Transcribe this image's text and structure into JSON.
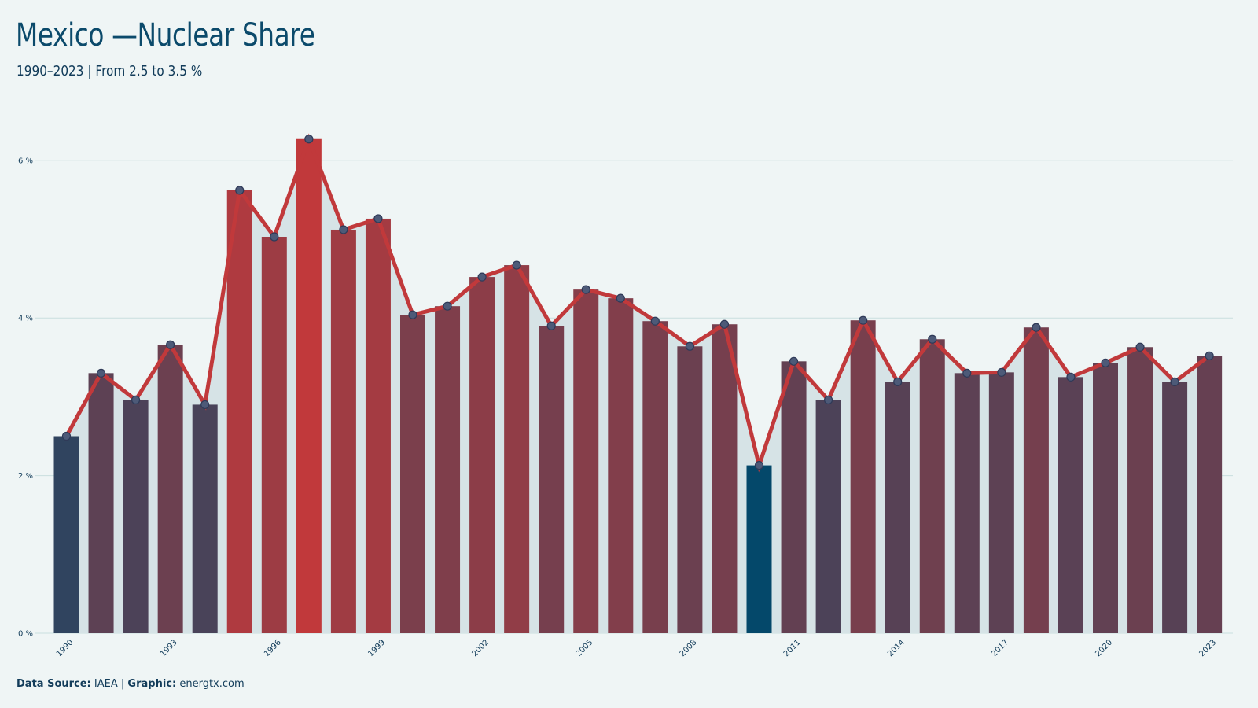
{
  "title": "Mexico —Nuclear Share",
  "subtitle": "1990–2023 | From 2.5 to 3.5 %",
  "footer": {
    "source_label": "Data Source:",
    "source_value": "IAEA",
    "separator": "|",
    "graphic_label": "Graphic:",
    "graphic_value": "energtx.com"
  },
  "colors": {
    "background": "#eff5f5",
    "line": "#c1393b",
    "low_bar": "#04486a",
    "high_bar": "#c1393b",
    "area": "#d6e3e6",
    "grid": "#c9dede",
    "title": "#0b4a6b"
  },
  "chart_data": {
    "type": "bar",
    "combined_with": "line",
    "x": [
      1990,
      1991,
      1992,
      1993,
      1994,
      1995,
      1996,
      1997,
      1998,
      1999,
      2000,
      2001,
      2002,
      2003,
      2004,
      2005,
      2006,
      2007,
      2008,
      2009,
      2010,
      2011,
      2012,
      2013,
      2014,
      2015,
      2016,
      2017,
      2018,
      2019,
      2020,
      2021,
      2022,
      2023
    ],
    "values": [
      2.5,
      3.3,
      2.96,
      3.66,
      2.9,
      5.62,
      5.03,
      6.27,
      5.12,
      5.26,
      4.04,
      4.15,
      4.52,
      4.67,
      3.9,
      4.36,
      4.25,
      3.96,
      3.64,
      3.92,
      2.13,
      3.45,
      2.96,
      3.97,
      3.19,
      3.73,
      3.3,
      3.31,
      3.88,
      3.25,
      3.43,
      3.63,
      3.19,
      3.52
    ],
    "x_tick_labels": [
      "1990",
      "1993",
      "1996",
      "1999",
      "2002",
      "2005",
      "2008",
      "2011",
      "2014",
      "2017",
      "2020",
      "2023"
    ],
    "y_ticks": [
      0,
      2,
      4,
      6
    ],
    "y_tick_suffix": " %",
    "ylim": [
      0,
      6.6
    ],
    "grid": true,
    "legend": false,
    "xlabel": "",
    "ylabel": ""
  }
}
